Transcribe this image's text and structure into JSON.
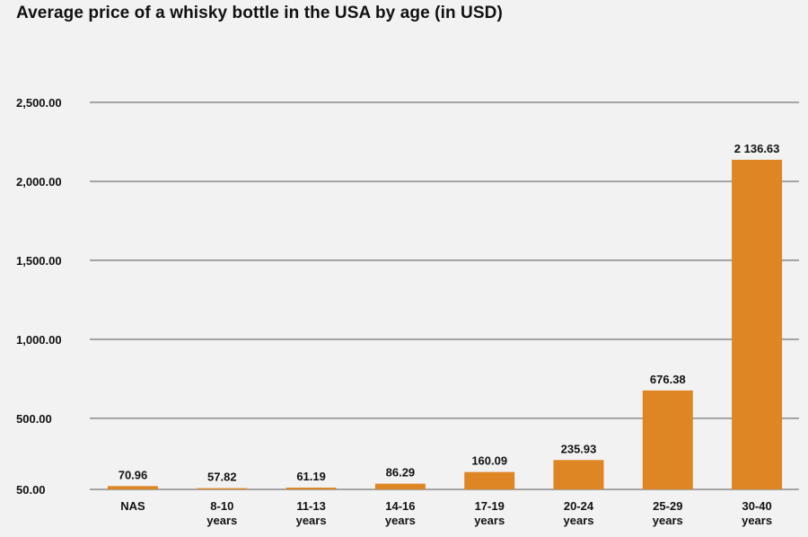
{
  "chart_data": {
    "type": "bar",
    "title": "Average price of a whisky bottle in the USA by age (in USD)",
    "categories": [
      [
        "NAS"
      ],
      [
        "8-10",
        "years"
      ],
      [
        "11-13",
        "years"
      ],
      [
        "14-16",
        "years"
      ],
      [
        "17-19",
        "years"
      ],
      [
        "20-24",
        "years"
      ],
      [
        "25-29",
        "years"
      ],
      [
        "30-40",
        "years"
      ]
    ],
    "values": [
      70.96,
      57.82,
      61.19,
      86.29,
      160.09,
      235.93,
      676.38,
      2136.63
    ],
    "value_labels": [
      "70.96",
      "57.82",
      "61.19",
      "86.29",
      "160.09",
      "235.93",
      "676.38",
      "2 136.63"
    ],
    "y_ticks": [
      50,
      500,
      1000,
      1500,
      2000,
      2500
    ],
    "y_tick_labels": [
      "50.00",
      "500.00",
      "1,000.00",
      "1,500.00",
      "2,000.00",
      "2,500.00"
    ],
    "ylim": [
      50,
      2500
    ],
    "grid": true,
    "legend": "none",
    "bar_color": "#de8624",
    "grid_color": "#555555"
  }
}
